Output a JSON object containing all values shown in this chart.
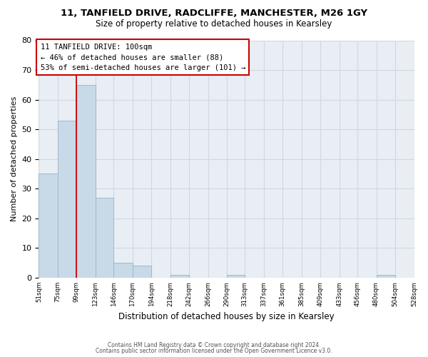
{
  "title_line1": "11, TANFIELD DRIVE, RADCLIFFE, MANCHESTER, M26 1GY",
  "title_line2": "Size of property relative to detached houses in Kearsley",
  "xlabel": "Distribution of detached houses by size in Kearsley",
  "ylabel": "Number of detached properties",
  "bar_edges": [
    51,
    75,
    99,
    123,
    146,
    170,
    194,
    218,
    242,
    266,
    290,
    313,
    337,
    361,
    385,
    409,
    433,
    456,
    480,
    504,
    528
  ],
  "bar_heights": [
    35,
    53,
    65,
    27,
    5,
    4,
    0,
    1,
    0,
    0,
    1,
    0,
    0,
    0,
    0,
    0,
    0,
    0,
    1,
    0
  ],
  "bar_color": "#c8d9e8",
  "bar_edgecolor": "#a0b8cc",
  "grid_color": "#d0d8e0",
  "background_color": "#e8eef4",
  "vline_x": 99,
  "vline_color": "#cc0000",
  "box_text_line1": "11 TANFIELD DRIVE: 100sqm",
  "box_text_line2": "← 46% of detached houses are smaller (88)",
  "box_text_line3": "53% of semi-detached houses are larger (101) →",
  "box_color": "white",
  "box_edgecolor": "#cc0000",
  "ylim": [
    0,
    80
  ],
  "yticks": [
    0,
    10,
    20,
    30,
    40,
    50,
    60,
    70,
    80
  ],
  "tick_labels": [
    "51sqm",
    "75sqm",
    "99sqm",
    "123sqm",
    "146sqm",
    "170sqm",
    "194sqm",
    "218sqm",
    "242sqm",
    "266sqm",
    "290sqm",
    "313sqm",
    "337sqm",
    "361sqm",
    "385sqm",
    "409sqm",
    "433sqm",
    "456sqm",
    "480sqm",
    "504sqm",
    "528sqm"
  ],
  "footnote_line1": "Contains HM Land Registry data © Crown copyright and database right 2024.",
  "footnote_line2": "Contains public sector information licensed under the Open Government Licence v3.0."
}
